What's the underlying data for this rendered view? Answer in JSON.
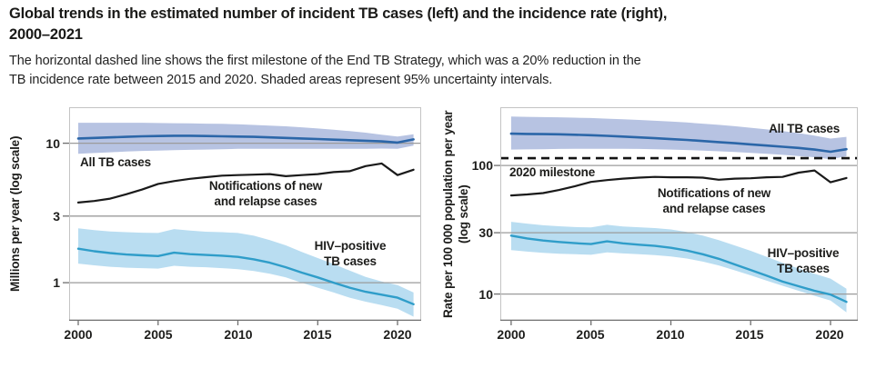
{
  "header": {
    "title_lines": [
      "Global trends in the estimated number of incident TB cases (left) and the incidence rate (right),",
      "2000–2021"
    ],
    "subtitle_lines": [
      "The horizontal dashed line shows the first milestone of the End TB Strategy, which was a 20% reduction in the",
      "TB incidence rate between 2015 and 2020. Shaded areas represent 95% uncertainty intervals."
    ]
  },
  "colors": {
    "all_tb_line": "#2b66a8",
    "all_tb_band": "#b7c3e2",
    "notifications_line": "#1a1a1a",
    "hiv_line": "#2f9dc9",
    "hiv_band": "#b9ddf1",
    "gridline": "#9b9b9b",
    "frame": "#c4c4c4",
    "axis": "#6e6e6e",
    "milestone": "#141414",
    "text": "#1d1d1b"
  },
  "chart_data": [
    {
      "type": "line",
      "panel": "left",
      "log_scale": true,
      "ylabel_lines": [
        "Millions per year (log scale)"
      ],
      "x": [
        2000,
        2001,
        2002,
        2003,
        2004,
        2005,
        2006,
        2007,
        2008,
        2009,
        2010,
        2011,
        2012,
        2013,
        2014,
        2015,
        2016,
        2017,
        2018,
        2019,
        2020,
        2021
      ],
      "xticks": [
        2000,
        2005,
        2010,
        2015,
        2020
      ],
      "yticks": [
        10,
        3,
        1
      ],
      "xlim": [
        1999.43,
        2021.48
      ],
      "ylim": [
        0.533,
        18.1
      ],
      "series": [
        {
          "name": "All TB cases",
          "color": "#2b66a8",
          "band_color": "#b7c3e2",
          "stroke_width": 2.6,
          "values": [
            10.8,
            10.9,
            11.0,
            11.1,
            11.2,
            11.25,
            11.3,
            11.3,
            11.25,
            11.2,
            11.15,
            11.1,
            11.0,
            10.9,
            10.8,
            10.7,
            10.6,
            10.5,
            10.4,
            10.3,
            10.1,
            10.65
          ],
          "band_upper": [
            14.0,
            14.0,
            14.0,
            14.0,
            14.0,
            13.95,
            13.9,
            13.85,
            13.8,
            13.75,
            13.65,
            13.5,
            13.35,
            13.2,
            13.0,
            12.75,
            12.5,
            12.2,
            11.9,
            11.5,
            11.15,
            11.6
          ],
          "band_lower": [
            8.4,
            8.5,
            8.6,
            8.7,
            8.8,
            8.85,
            8.9,
            8.95,
            9.0,
            9.05,
            9.1,
            9.1,
            9.1,
            9.1,
            9.1,
            9.1,
            9.1,
            9.1,
            9.1,
            9.15,
            9.1,
            9.6
          ]
        },
        {
          "name": "Notifications of new and relapse cases",
          "color": "#1a1a1a",
          "stroke_width": 2.2,
          "values": [
            3.75,
            3.85,
            4.0,
            4.3,
            4.65,
            5.1,
            5.35,
            5.55,
            5.7,
            5.85,
            5.9,
            5.95,
            6.0,
            5.8,
            5.9,
            6.0,
            6.2,
            6.3,
            6.85,
            7.15,
            5.9,
            6.45
          ]
        },
        {
          "name": "HIV-positive TB cases",
          "color": "#2f9dc9",
          "band_color": "#b9ddf1",
          "stroke_width": 2.4,
          "values": [
            1.75,
            1.68,
            1.63,
            1.59,
            1.57,
            1.55,
            1.64,
            1.6,
            1.58,
            1.56,
            1.53,
            1.47,
            1.39,
            1.29,
            1.18,
            1.09,
            1.0,
            0.92,
            0.86,
            0.82,
            0.78,
            0.7
          ],
          "band_upper": [
            2.45,
            2.38,
            2.33,
            2.3,
            2.28,
            2.27,
            2.42,
            2.36,
            2.32,
            2.3,
            2.27,
            2.17,
            2.02,
            1.85,
            1.66,
            1.5,
            1.36,
            1.22,
            1.1,
            1.02,
            0.96,
            0.85
          ],
          "band_lower": [
            1.37,
            1.33,
            1.3,
            1.28,
            1.27,
            1.26,
            1.32,
            1.3,
            1.29,
            1.27,
            1.25,
            1.21,
            1.16,
            1.09,
            1.0,
            0.92,
            0.85,
            0.78,
            0.73,
            0.69,
            0.65,
            0.57
          ]
        }
      ],
      "annotations": [
        {
          "id": "all-tb",
          "lines": [
            "All TB cases"
          ]
        },
        {
          "id": "notifications",
          "lines": [
            "Notifications of new",
            "and relapse cases"
          ]
        },
        {
          "id": "hiv",
          "lines": [
            "HIV–positive",
            "TB cases"
          ]
        }
      ]
    },
    {
      "type": "line",
      "panel": "right",
      "log_scale": true,
      "ylabel_lines": [
        "Rate per 100 000 population per year",
        "(log scale)"
      ],
      "x": [
        2000,
        2001,
        2002,
        2003,
        2004,
        2005,
        2006,
        2007,
        2008,
        2009,
        2010,
        2011,
        2012,
        2013,
        2014,
        2015,
        2016,
        2017,
        2018,
        2019,
        2020,
        2021
      ],
      "xticks": [
        2000,
        2005,
        2010,
        2015,
        2020
      ],
      "yticks": [
        100,
        30,
        10
      ],
      "xlim": [
        1999.32,
        2021.71
      ],
      "ylim": [
        6.2,
        284
      ],
      "milestone": {
        "label": "2020 milestone",
        "value": 114
      },
      "series": [
        {
          "name": "All TB cases",
          "color": "#2b66a8",
          "band_color": "#b7c3e2",
          "stroke_width": 2.6,
          "values": [
            177,
            176,
            175.5,
            175,
            173.5,
            172,
            170,
            168,
            165.5,
            163,
            160.5,
            158,
            155,
            152,
            149,
            146,
            143,
            140,
            137,
            133,
            128,
            134
          ],
          "band_upper": [
            240,
            239,
            238,
            237,
            235.5,
            234,
            231.5,
            229,
            226,
            223,
            219.5,
            216,
            211.5,
            207,
            202,
            196.5,
            191,
            185,
            178.5,
            171,
            162,
            167
          ],
          "band_lower": [
            133,
            133.5,
            134,
            134.5,
            135,
            135,
            135,
            135,
            134.5,
            134,
            133,
            132,
            130.5,
            129,
            127.5,
            125.5,
            123.5,
            121,
            118.5,
            116,
            112,
            118
          ]
        },
        {
          "name": "Notifications of new and relapse cases",
          "color": "#1a1a1a",
          "stroke_width": 2.2,
          "values": [
            58.5,
            59.5,
            61,
            64.5,
            69,
            74.5,
            77,
            79,
            80.5,
            81.5,
            81,
            81,
            80.5,
            77.5,
            79,
            79.5,
            81,
            81.5,
            88,
            91.5,
            74,
            80
          ]
        },
        {
          "name": "HIV-positive TB cases",
          "color": "#2f9dc9",
          "band_color": "#b9ddf1",
          "stroke_width": 2.4,
          "values": [
            28.5,
            27.1,
            26.1,
            25.4,
            24.9,
            24.5,
            25.7,
            24.8,
            24.2,
            23.7,
            22.9,
            21.8,
            20.4,
            18.8,
            17.0,
            15.4,
            13.9,
            12.5,
            11.5,
            10.6,
            9.9,
            8.7
          ],
          "band_upper": [
            36.5,
            35.3,
            34.3,
            33.7,
            33.2,
            33.0,
            34.6,
            33.6,
            33.1,
            32.6,
            31.8,
            30.4,
            28.5,
            26.3,
            23.9,
            21.7,
            19.5,
            17.5,
            15.8,
            14.4,
            13.2,
            11.0
          ],
          "band_lower": [
            22.0,
            21.4,
            20.9,
            20.6,
            20.4,
            20.2,
            21.1,
            20.7,
            20.4,
            20.1,
            19.6,
            18.9,
            17.9,
            16.7,
            15.3,
            14.0,
            12.7,
            11.6,
            10.6,
            9.7,
            8.9,
            7.2
          ]
        }
      ],
      "annotations": [
        {
          "id": "all-tb",
          "lines": [
            "All TB cases"
          ]
        },
        {
          "id": "notifications",
          "lines": [
            "Notifications of new",
            "and relapse cases"
          ]
        },
        {
          "id": "hiv",
          "lines": [
            "HIV–positive",
            "TB cases"
          ]
        }
      ]
    }
  ]
}
